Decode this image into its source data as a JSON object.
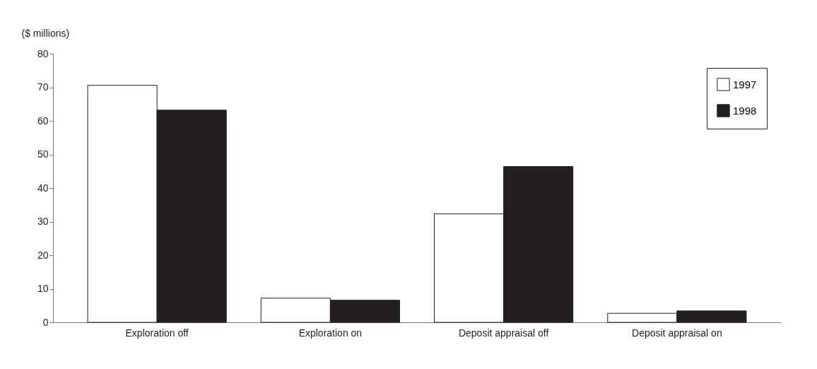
{
  "chart_data": {
    "type": "bar",
    "ylabel": "($ millions)",
    "categories": [
      "Exploration off",
      "Exploration on",
      "Deposit appraisal off",
      "Deposit appraisal on"
    ],
    "series": [
      {
        "name": "1997",
        "color": "#ffffff",
        "values": [
          70.6,
          7.2,
          32.3,
          2.7
        ]
      },
      {
        "name": "1998",
        "color": "#231f20",
        "values": [
          63.2,
          6.6,
          46.4,
          3.4
        ]
      }
    ],
    "ylim": [
      0,
      80
    ],
    "yticks": [
      0,
      10,
      20,
      30,
      40,
      50,
      60,
      70,
      80
    ],
    "grid": false,
    "legend": "top right"
  }
}
